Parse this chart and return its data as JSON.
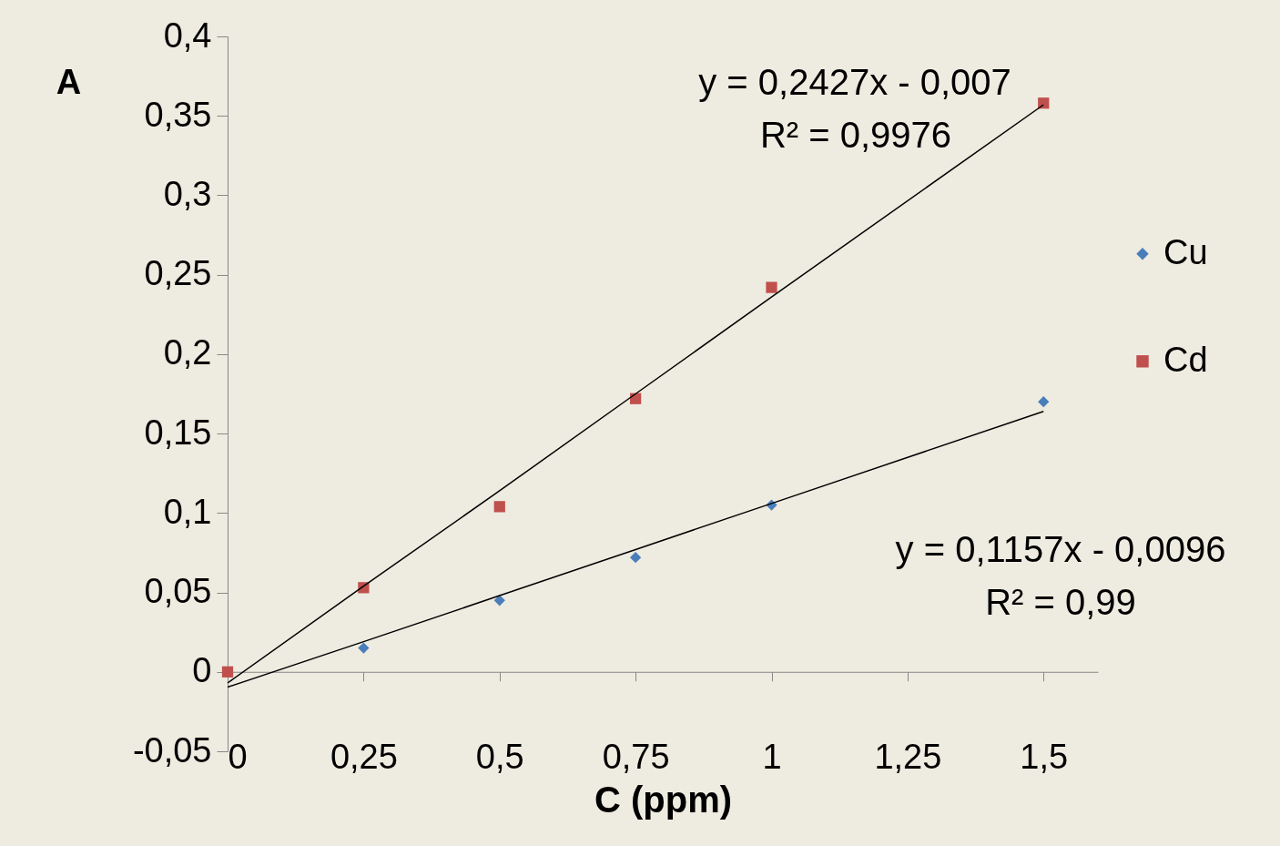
{
  "chart_data": {
    "type": "scatter",
    "xlabel": "C (ppm)",
    "ylabel": "A",
    "x": [
      0,
      0.25,
      0.5,
      0.75,
      1,
      1.5
    ],
    "series": [
      {
        "name": "Cu",
        "color": "#4a7ebb",
        "marker": "diamond",
        "values": [
          null,
          0.015,
          0.045,
          0.072,
          0.105,
          0.17
        ]
      },
      {
        "name": "Cd",
        "color": "#c0504d",
        "marker": "square",
        "values": [
          0,
          0.053,
          0.104,
          0.172,
          0.242,
          0.358
        ]
      },
      {
        "type": "line",
        "color": "#000000",
        "values": [
          -0.007,
          0.054,
          0.114,
          0.175,
          0.236,
          0.357
        ]
      },
      {
        "type": "line",
        "color": "#000000",
        "values": [
          -0.0096,
          0.019,
          0.048,
          0.077,
          0.106,
          0.164
        ]
      }
    ],
    "xlim": [
      0,
      1.6
    ],
    "xticks": [
      0,
      {
        "value": 0.25,
        "label": "0,25"
      },
      {
        "value": 0.5,
        "label": "0,5"
      },
      {
        "value": 0.75,
        "label": "0,75"
      },
      1,
      {
        "value": 1.25,
        "label": "1,25"
      },
      {
        "value": 1.5,
        "label": "1,5"
      }
    ],
    "ylim": [
      -0.05,
      0.4
    ],
    "yticks": [
      {
        "value": -0.05,
        "label": "-0,05"
      },
      0,
      {
        "value": 0.05,
        "label": "0,05"
      },
      {
        "value": 0.1,
        "label": "0,1"
      },
      {
        "value": 0.15,
        "label": "0,15"
      },
      {
        "value": 0.2,
        "label": "0,2"
      },
      {
        "value": 0.25,
        "label": "0,25"
      },
      {
        "value": 0.3,
        "label": "0,3"
      },
      {
        "value": 0.35,
        "label": "0,35"
      },
      {
        "value": 0.4,
        "label": "0,4"
      }
    ],
    "grid": false,
    "legend": "right",
    "annotations": [
      "y = 0,2427x - 0,007",
      "R² = 0,9976",
      "y = 0,1157x - 0,0096",
      "R² = 0,99"
    ]
  }
}
